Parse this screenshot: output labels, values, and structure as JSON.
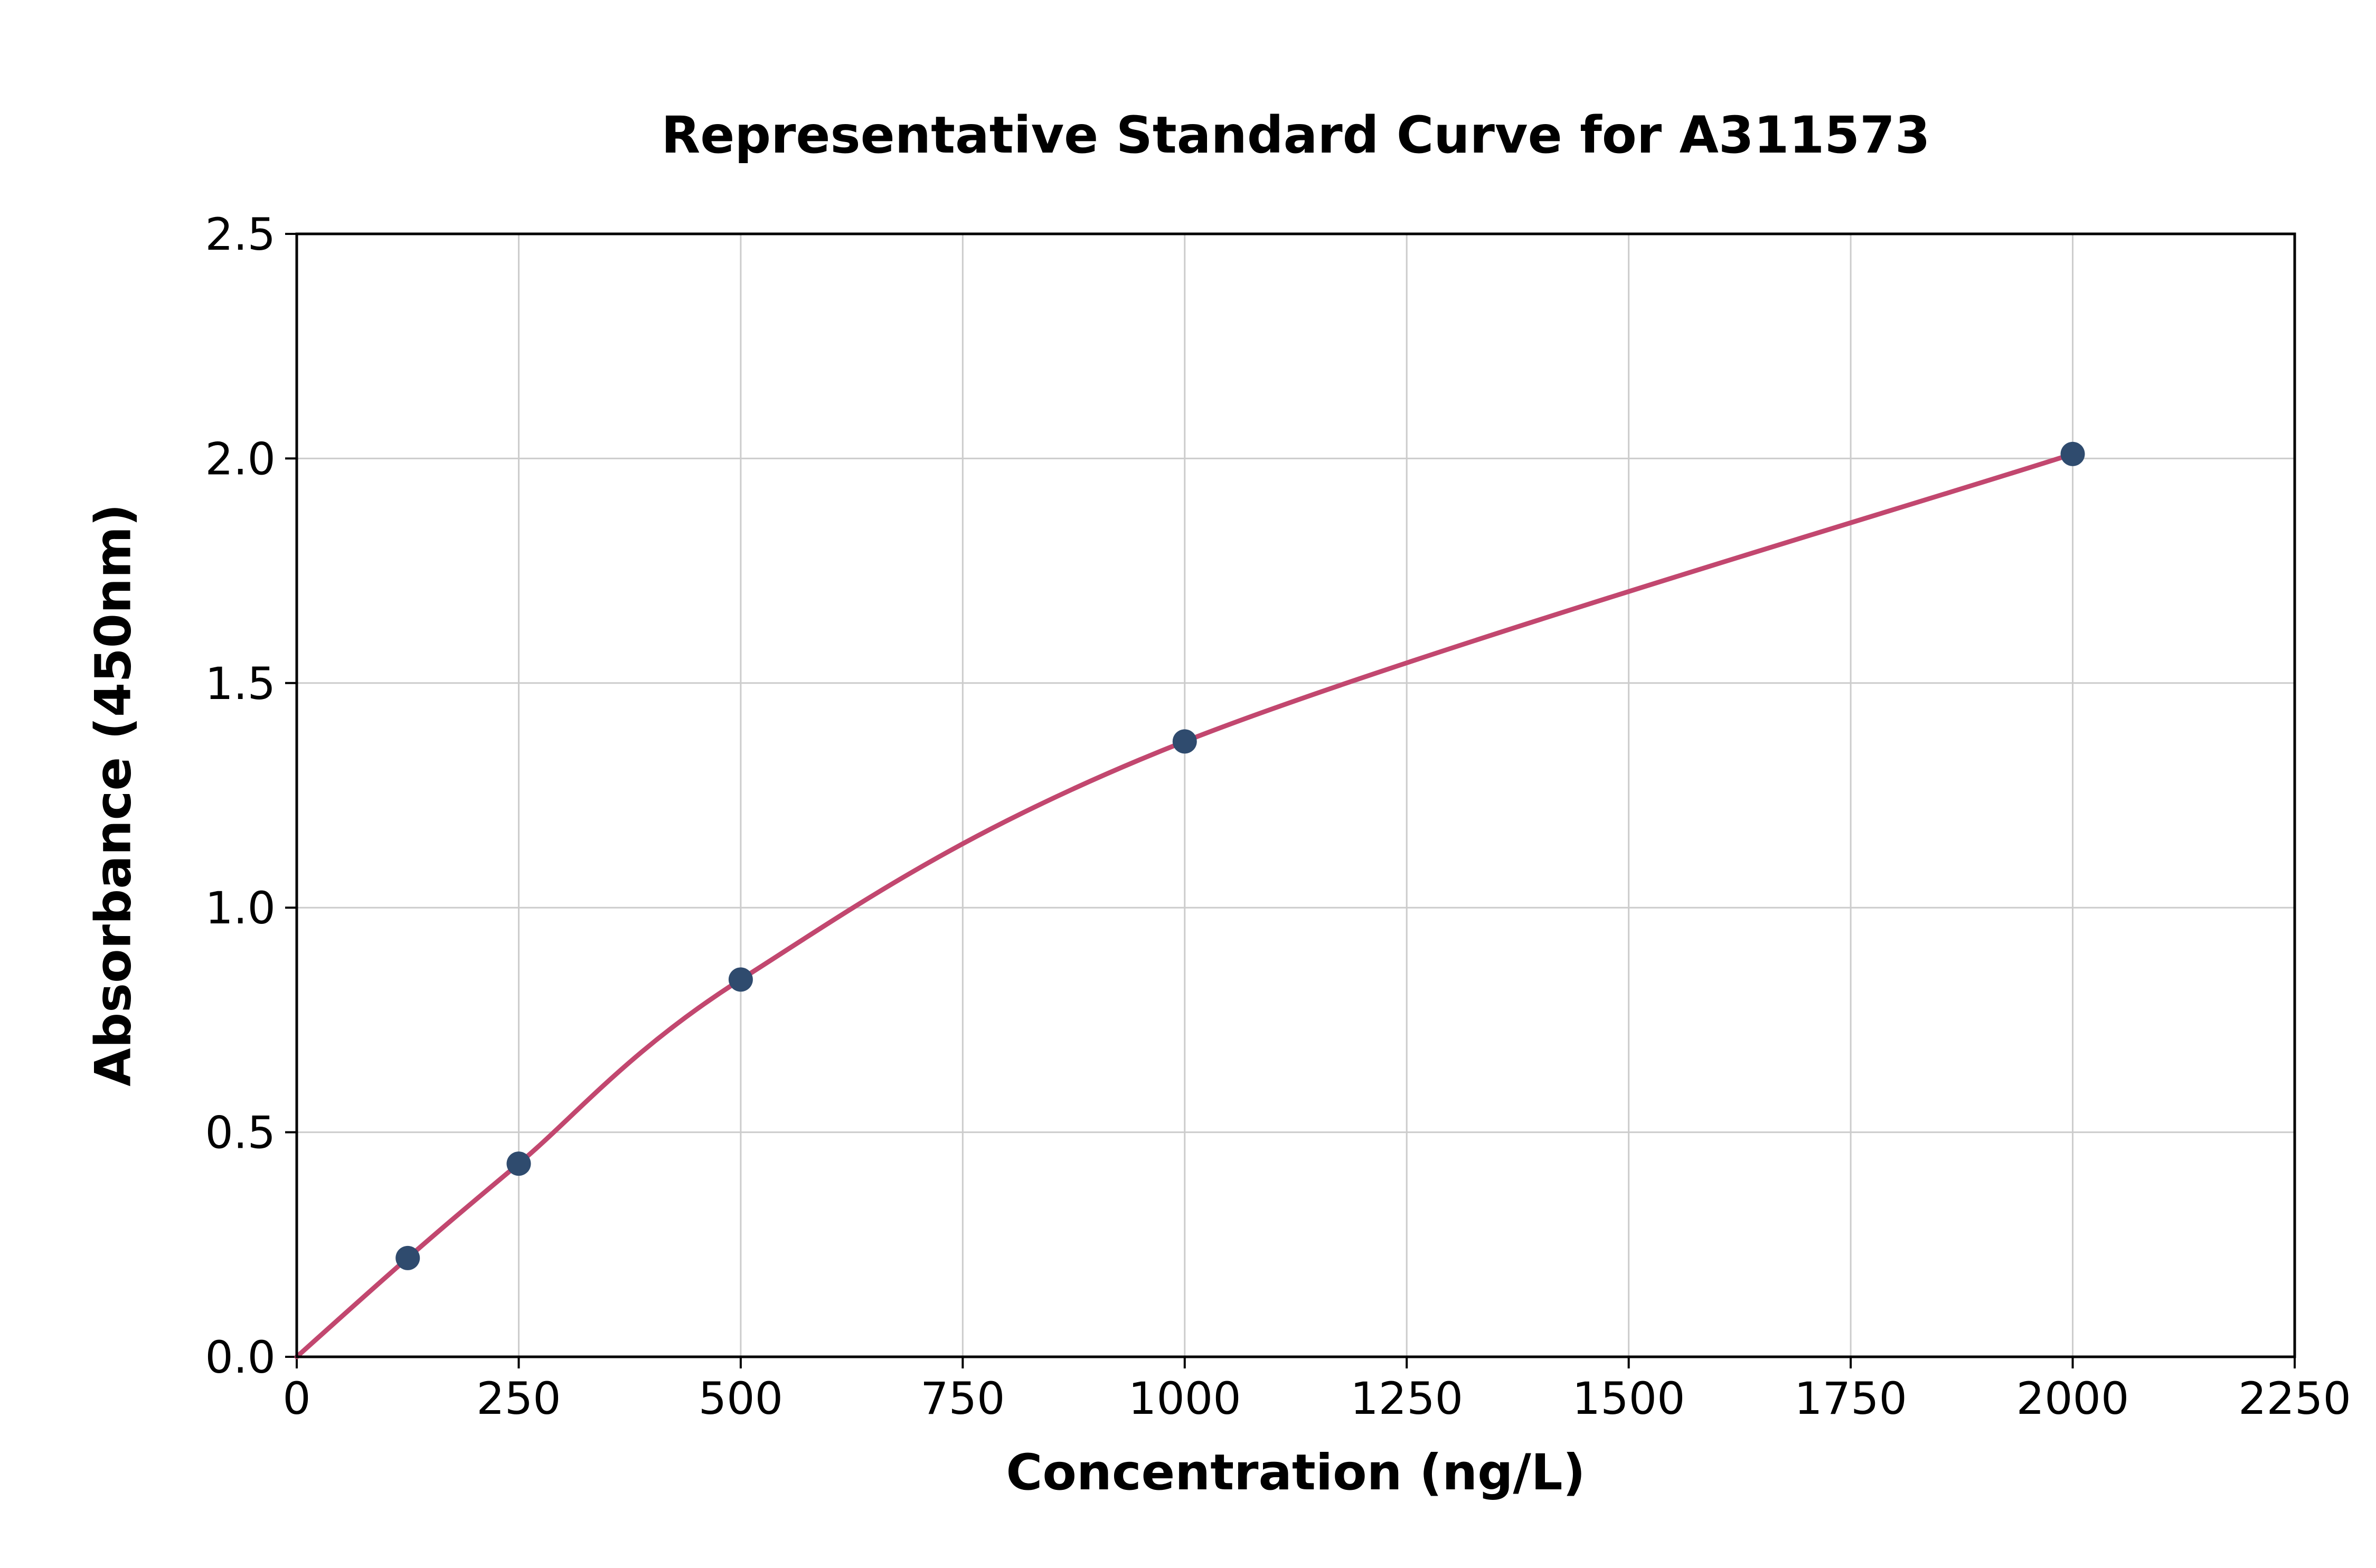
{
  "chart_data": {
    "type": "line",
    "title": "Representative Standard Curve for A311573",
    "xlabel": "Concentration (ng/L)",
    "ylabel": "Absorbance (450nm)",
    "xlim": [
      0,
      2250
    ],
    "ylim": [
      0,
      2.5
    ],
    "xticks": [
      0,
      250,
      500,
      750,
      1000,
      1250,
      1500,
      1750,
      2000,
      2250
    ],
    "xtick_labels": [
      "0",
      "250",
      "500",
      "750",
      "1000",
      "1250",
      "1500",
      "1750",
      "2000",
      "2250"
    ],
    "yticks": [
      0,
      0.5,
      1.0,
      1.5,
      2.0,
      2.5
    ],
    "ytick_labels": [
      "0.0",
      "0.5",
      "1.0",
      "1.5",
      "2.0",
      "2.5"
    ],
    "grid": true,
    "legend_position": "none",
    "colors": {
      "curve": "#c2476f",
      "marker": "#2f4b6e",
      "grid": "#cccccc",
      "axis": "#000000",
      "background": "#ffffff"
    },
    "series": [
      {
        "name": "standard-curve-fit",
        "style": "smooth-line",
        "color": "#c2476f",
        "points": [
          [
            0,
            0
          ],
          [
            125,
            0.22
          ],
          [
            250,
            0.43
          ],
          [
            500,
            0.84
          ],
          [
            1000,
            1.37
          ],
          [
            2000,
            2.01
          ]
        ]
      },
      {
        "name": "standard-points",
        "style": "scatter",
        "color": "#2f4b6e",
        "points": [
          [
            125,
            0.22
          ],
          [
            250,
            0.43
          ],
          [
            500,
            0.84
          ],
          [
            1000,
            1.37
          ],
          [
            2000,
            2.01
          ]
        ]
      }
    ]
  }
}
